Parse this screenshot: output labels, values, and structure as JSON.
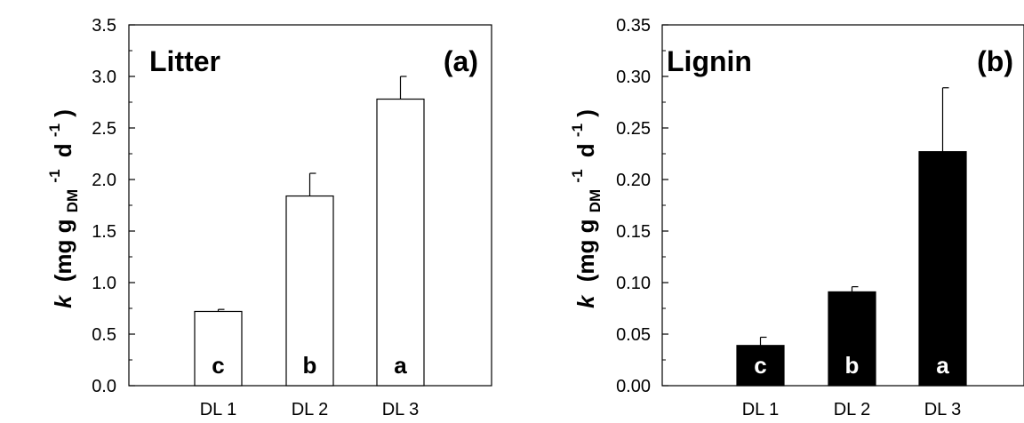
{
  "chart_data": [
    {
      "type": "bar",
      "panel_tag": "(a)",
      "title": "Litter",
      "categories": [
        "DL 1",
        "DL 2",
        "DL 3"
      ],
      "values": [
        0.72,
        1.84,
        2.78
      ],
      "errors": [
        0.02,
        0.22,
        0.22
      ],
      "significance": [
        "c",
        "b",
        "a"
      ],
      "bar_fill": "#ffffff",
      "sig_color": "#000000",
      "ylim": [
        0,
        3.5
      ],
      "yticks": [
        "0.0",
        "0.5",
        "1.0",
        "1.5",
        "2.0",
        "2.5",
        "3.0",
        "3.5"
      ],
      "ylabel": {
        "k": "k",
        "open": "(mg g",
        "sub": "DM",
        "sup1": "-1",
        "d": "d",
        "sup2": "-1",
        "close": ")"
      }
    },
    {
      "type": "bar",
      "panel_tag": "(b)",
      "title": "Lignin",
      "categories": [
        "DL 1",
        "DL 2",
        "DL 3"
      ],
      "values": [
        0.039,
        0.091,
        0.227
      ],
      "errors": [
        0.008,
        0.005,
        0.062
      ],
      "significance": [
        "c",
        "b",
        "a"
      ],
      "bar_fill": "#000000",
      "sig_color": "#ffffff",
      "ylim": [
        0,
        0.35
      ],
      "yticks": [
        "0.00",
        "0.05",
        "0.10",
        "0.15",
        "0.20",
        "0.25",
        "0.30",
        "0.35"
      ],
      "ylabel": {
        "k": "k",
        "open": "(mg g",
        "sub": "DM",
        "sup1": "-1",
        "d": "d",
        "sup2": "-1",
        "close": ")"
      }
    }
  ]
}
